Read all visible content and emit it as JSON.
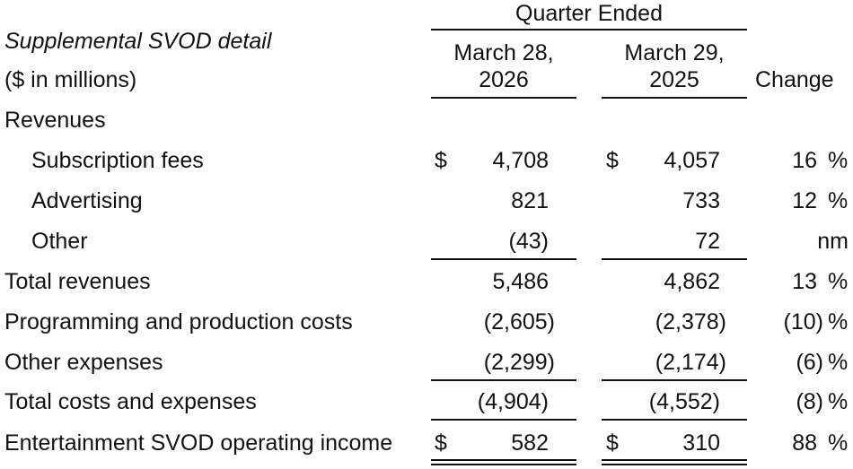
{
  "header": {
    "quarter_ended": "Quarter Ended",
    "title": "Supplemental SVOD detail",
    "units": "($ in millions)",
    "col1_line1": "March 28,",
    "col1_line2": "2026",
    "col2_line1": "March 29,",
    "col2_line2": "2025",
    "change": "Change"
  },
  "rows": [
    {
      "label": "Revenues",
      "cur_sym": "",
      "cur": "",
      "prev_sym": "",
      "prev": "",
      "chg": "",
      "pct": ""
    },
    {
      "label": "Subscription fees",
      "cur_sym": "$",
      "cur": "4,708",
      "prev_sym": "$",
      "prev": "4,057",
      "chg": "16",
      "pct": "%"
    },
    {
      "label": "Advertising",
      "cur_sym": "",
      "cur": "821",
      "prev_sym": "",
      "prev": "733",
      "chg": "12",
      "pct": "%"
    },
    {
      "label": "Other",
      "cur_sym": "",
      "cur": "(43)",
      "prev_sym": "",
      "prev": "72",
      "chg": "nm",
      "pct": ""
    },
    {
      "label": "Total revenues",
      "cur_sym": "",
      "cur": "5,486",
      "prev_sym": "",
      "prev": "4,862",
      "chg": "13",
      "pct": "%"
    },
    {
      "label": "Programming and production costs",
      "cur_sym": "",
      "cur": "(2,605)",
      "prev_sym": "",
      "prev": "(2,378)",
      "chg": "(10)",
      "pct": "%"
    },
    {
      "label": "Other expenses",
      "cur_sym": "",
      "cur": "(2,299)",
      "prev_sym": "",
      "prev": "(2,174)",
      "chg": "(6)",
      "pct": "%"
    },
    {
      "label": "Total costs and expenses",
      "cur_sym": "",
      "cur": "(4,904)",
      "prev_sym": "",
      "prev": "(4,552)",
      "chg": "(8)",
      "pct": "%"
    },
    {
      "label": "Entertainment SVOD operating income",
      "cur_sym": "$",
      "cur": "582",
      "prev_sym": "$",
      "prev": "310",
      "chg": "88",
      "pct": "%"
    }
  ]
}
